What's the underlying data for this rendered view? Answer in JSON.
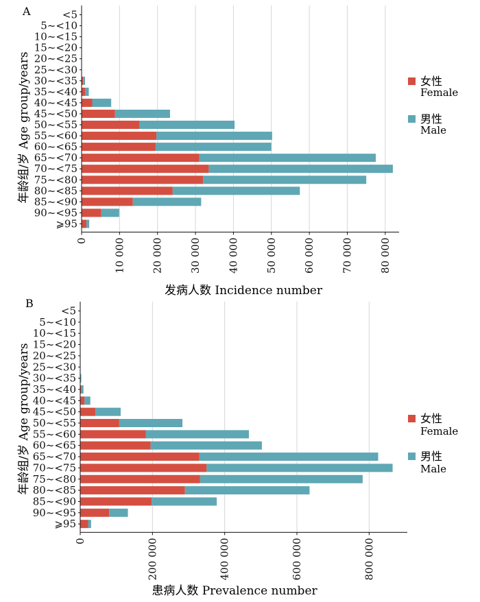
{
  "panels": [
    {
      "letter": "A",
      "ylabel": "年龄组/岁 Age group/years",
      "xlabel": "发病人数 Incidence number",
      "legend": [
        {
          "cn": "女性",
          "en": "Female",
          "color": "#d44f41"
        },
        {
          "cn": "男性",
          "en": "Male",
          "color": "#5fa7b4"
        }
      ]
    },
    {
      "letter": "B",
      "ylabel": "年龄组/岁 Age group/years",
      "xlabel": "患病人数  Prevalence number",
      "legend": [
        {
          "cn": "女性",
          "en": "Female",
          "color": "#d44f41"
        },
        {
          "cn": "男性",
          "en": "Male",
          "color": "#5fa7b4"
        }
      ]
    }
  ],
  "chart_data": [
    {
      "type": "bar",
      "orientation": "horizontal",
      "stacked": true,
      "categories": [
        "<5",
        "5~<10",
        "10~<15",
        "15~<20",
        "20~<25",
        "25~<30",
        "30~<35",
        "35~<40",
        "40~<45",
        "45~<50",
        "50~<55",
        "55~<60",
        "60~<65",
        "65~<70",
        "70~<75",
        "75~<80",
        "80~<85",
        "85~<90",
        "90~<95",
        "⩾95"
      ],
      "series": [
        {
          "name": "女性 Female",
          "color": "#d44f41",
          "values": [
            0,
            0,
            0,
            0,
            0,
            0,
            400,
            900,
            2800,
            8800,
            15300,
            19700,
            19500,
            31000,
            33500,
            32000,
            24000,
            13500,
            5200,
            1300
          ]
        },
        {
          "name": "男性 Male",
          "color": "#5fa7b4",
          "values": [
            0,
            0,
            0,
            0,
            0,
            0,
            500,
            1000,
            5000,
            14500,
            25000,
            30500,
            30500,
            46500,
            48500,
            43000,
            33500,
            18000,
            4700,
            700
          ]
        }
      ],
      "xlim": [
        0,
        85000
      ],
      "xticks": [
        0,
        10000,
        20000,
        30000,
        40000,
        50000,
        60000,
        70000,
        80000
      ],
      "xtick_labels": [
        "0",
        "10 000",
        "20 000",
        "30 000",
        "40 000",
        "50 000",
        "60 000",
        "70 000",
        "80 000"
      ],
      "grid": "vertical",
      "legend_position": "right"
    },
    {
      "type": "bar",
      "orientation": "horizontal",
      "stacked": true,
      "categories": [
        "<5",
        "5~<10",
        "10~<15",
        "15~<20",
        "20~<25",
        "25~<30",
        "30~<35",
        "35~<40",
        "40~<45",
        "45~<50",
        "50~<55",
        "55~<60",
        "60~<65",
        "65~<70",
        "70~<75",
        "75~<80",
        "80~<85",
        "85~<90",
        "90~<95",
        "⩾95"
      ],
      "series": [
        {
          "name": "女性 Female",
          "color": "#d44f41",
          "values": [
            0,
            0,
            0,
            0,
            0,
            0,
            1000,
            3000,
            12000,
            42000,
            108000,
            182000,
            195000,
            330000,
            350000,
            332000,
            290000,
            198000,
            80000,
            22000
          ]
        },
        {
          "name": "男性 Male",
          "color": "#5fa7b4",
          "values": [
            0,
            0,
            0,
            0,
            0,
            0,
            2000,
            6000,
            16000,
            70000,
            175000,
            285000,
            308000,
            495000,
            515000,
            450000,
            345000,
            180000,
            52000,
            8000
          ]
        }
      ],
      "xlim": [
        0,
        900000
      ],
      "xticks": [
        0,
        200000,
        400000,
        600000,
        800000
      ],
      "xtick_labels": [
        "0",
        "200 000",
        "400 000",
        "600 000",
        "800 000"
      ],
      "grid": "vertical",
      "legend_position": "right"
    }
  ]
}
